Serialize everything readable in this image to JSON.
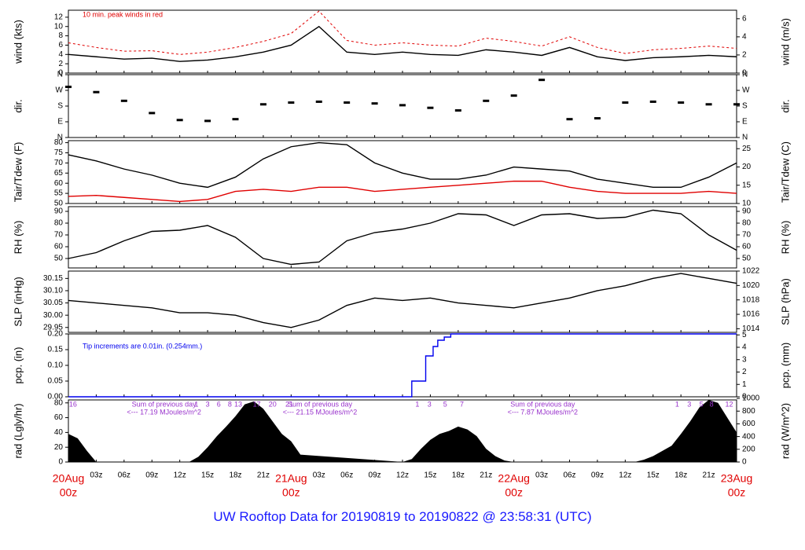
{
  "footer_title": "UW Rooftop Data for 20190819  to  20190822 @ 23:58:31  (UTC)",
  "colors": {
    "axis": "#000000",
    "red": "#e00000",
    "blue": "#0000ee",
    "purple": "#9933cc",
    "title": "#1a1aff"
  },
  "x_axis": {
    "hour_ticks": [
      "03z",
      "06z",
      "09z",
      "12z",
      "15z",
      "18z",
      "21z",
      "03z",
      "06z",
      "09z",
      "12z",
      "15z",
      "18z",
      "21z",
      "03z",
      "06z",
      "09z",
      "12z",
      "15z",
      "18z",
      "21z"
    ],
    "day_labels": [
      {
        "date": "20Aug",
        "time": "00z"
      },
      {
        "date": "21Aug",
        "time": "00z"
      },
      {
        "date": "22Aug",
        "time": "00z"
      },
      {
        "date": "23Aug",
        "time": "00z"
      }
    ]
  },
  "chart_data": [
    {
      "type": "line",
      "panel": "wind",
      "ylabel_left": "wind (kts)",
      "ylabel_right": "wind (m/s)",
      "left_ticks": [
        "0",
        "2",
        "4",
        "6",
        "8",
        "10",
        "12"
      ],
      "ylim_left": [
        0,
        13.5
      ],
      "right_ticks": [
        "0",
        "2",
        "4",
        "6"
      ],
      "ylim_right": [
        0,
        6.94
      ],
      "annotation": "10 min. peak winds in red",
      "series": [
        {
          "role": "mean",
          "color": "#000000",
          "x": [
            0,
            3,
            6,
            9,
            12,
            15,
            18,
            21,
            24,
            27,
            30,
            33,
            36,
            39,
            42,
            45,
            48,
            51,
            54,
            57,
            60,
            63,
            66,
            69,
            72
          ],
          "y": [
            4,
            3.5,
            3,
            3.2,
            2.5,
            2.8,
            3.5,
            4.5,
            6,
            10,
            4.5,
            4,
            4.5,
            4,
            3.8,
            5,
            4.5,
            3.8,
            5.5,
            3.5,
            2.7,
            3.3,
            3.5,
            3.8,
            3.5
          ]
        },
        {
          "role": "peak",
          "color": "#e00000",
          "x": [
            0,
            3,
            6,
            9,
            12,
            15,
            18,
            21,
            24,
            27,
            30,
            33,
            36,
            39,
            42,
            45,
            48,
            51,
            54,
            57,
            60,
            63,
            66,
            69,
            72
          ],
          "y": [
            6.5,
            5.5,
            4.7,
            4.8,
            4,
            4.5,
            5.5,
            6.8,
            8.5,
            13.3,
            7,
            6,
            6.5,
            6,
            5.8,
            7.5,
            6.8,
            5.8,
            7.8,
            5.5,
            4.2,
            5,
            5.3,
            5.8,
            5.3
          ]
        }
      ]
    },
    {
      "type": "scatter",
      "panel": "dir",
      "ylabel_left": "dir.",
      "ylabel_right": "dir.",
      "left_ticks": [
        "N",
        "E",
        "S",
        "W",
        "N"
      ],
      "right_ticks": [
        "N",
        "E",
        "S",
        "W",
        "N"
      ],
      "ylim": [
        0,
        360
      ],
      "series": [
        {
          "color": "#000000",
          "x": [
            0,
            3,
            6,
            9,
            12,
            15,
            18,
            21,
            24,
            27,
            30,
            33,
            36,
            39,
            42,
            45,
            48,
            51,
            54,
            57,
            60,
            63,
            66,
            69,
            72
          ],
          "y": [
            290,
            260,
            210,
            140,
            100,
            95,
            105,
            190,
            200,
            205,
            200,
            195,
            185,
            170,
            155,
            210,
            240,
            330,
            105,
            110,
            200,
            205,
            200,
            190,
            190
          ]
        }
      ]
    },
    {
      "type": "line",
      "panel": "temp",
      "ylabel_left": "Tair/Tdew (F)",
      "ylabel_right": "Tair/Tdew (C)",
      "left_ticks": [
        "50",
        "55",
        "60",
        "65",
        "70",
        "75",
        "80"
      ],
      "ylim_left": [
        50,
        81
      ],
      "right_ticks": [
        "10",
        "15",
        "20",
        "25"
      ],
      "ylim_right": [
        10,
        27.2
      ],
      "series": [
        {
          "name": "Tair",
          "color": "#000000",
          "x": [
            0,
            3,
            6,
            9,
            12,
            15,
            18,
            21,
            24,
            27,
            30,
            33,
            36,
            39,
            42,
            45,
            48,
            51,
            54,
            57,
            60,
            63,
            66,
            69,
            72
          ],
          "y": [
            74,
            71,
            67,
            64,
            60,
            58,
            63,
            72,
            78,
            80,
            79,
            70,
            65,
            62,
            62,
            64,
            68,
            67,
            66,
            62,
            60,
            58,
            58,
            63,
            70
          ]
        },
        {
          "name": "Tdew",
          "color": "#e00000",
          "x": [
            0,
            3,
            6,
            9,
            12,
            15,
            18,
            21,
            24,
            27,
            30,
            33,
            36,
            39,
            42,
            45,
            48,
            51,
            54,
            57,
            60,
            63,
            66,
            69,
            72
          ],
          "y": [
            53.5,
            54,
            53,
            52,
            51,
            52,
            56,
            57,
            56,
            58,
            58,
            56,
            57,
            58,
            59,
            60,
            61,
            61,
            58,
            56,
            55,
            55,
            55,
            56,
            55
          ]
        }
      ]
    },
    {
      "type": "line",
      "panel": "rh",
      "ylabel_left": "RH (%)",
      "ylabel_right": "RH (%)",
      "left_ticks": [
        "50",
        "60",
        "70",
        "80",
        "90"
      ],
      "right_ticks": [
        "50",
        "60",
        "70",
        "80",
        "90"
      ],
      "ylim": [
        42,
        94
      ],
      "series": [
        {
          "color": "#000000",
          "x": [
            0,
            3,
            6,
            9,
            12,
            15,
            18,
            21,
            24,
            27,
            30,
            33,
            36,
            39,
            42,
            45,
            48,
            51,
            54,
            57,
            60,
            63,
            66,
            69,
            72
          ],
          "y": [
            50,
            55,
            65,
            73,
            74,
            78,
            68,
            50,
            45,
            47,
            65,
            72,
            75,
            80,
            88,
            87,
            78,
            87,
            88,
            84,
            85,
            91,
            88,
            70,
            57
          ]
        }
      ]
    },
    {
      "type": "line",
      "panel": "slp",
      "ylabel_left": "SLP (inHg)",
      "ylabel_right": "SLP (hPa)",
      "left_ticks": [
        "29.95",
        "30.00",
        "30.05",
        "30.10",
        "30.15"
      ],
      "ylim_left": [
        29.93,
        30.18
      ],
      "right_ticks": [
        "1014",
        "1016",
        "1018",
        "1020",
        "1022"
      ],
      "ylim_right": [
        1013.5,
        1022.0
      ],
      "series": [
        {
          "color": "#000000",
          "x": [
            0,
            3,
            6,
            9,
            12,
            15,
            18,
            21,
            24,
            27,
            30,
            33,
            36,
            39,
            42,
            45,
            48,
            51,
            54,
            57,
            60,
            63,
            66,
            69,
            72
          ],
          "y": [
            30.06,
            30.05,
            30.04,
            30.03,
            30.01,
            30.01,
            30.0,
            29.97,
            29.95,
            29.98,
            30.04,
            30.07,
            30.06,
            30.07,
            30.05,
            30.04,
            30.03,
            30.05,
            30.07,
            30.1,
            30.12,
            30.15,
            30.17,
            30.15,
            30.13
          ]
        }
      ]
    },
    {
      "type": "line",
      "panel": "pcp",
      "ylabel_left": "pcp. (in)",
      "ylabel_right": "pcp. (mm)",
      "left_ticks": [
        "0.00",
        "0.05",
        "0.10",
        "0.15",
        "0.20"
      ],
      "ylim_left": [
        0,
        0.2
      ],
      "right_ticks": [
        "0",
        "1",
        "2",
        "3",
        "4",
        "5"
      ],
      "ylim_right": [
        0,
        5.08
      ],
      "annotation": "Tip increments are 0.01in. (0.254mm.)",
      "series": [
        {
          "color": "#0000ee",
          "x": [
            0,
            37,
            37,
            38.5,
            38.5,
            39.3,
            39.3,
            39.8,
            39.8,
            40.5,
            40.5,
            41.2,
            41.2,
            72
          ],
          "y": [
            0,
            0,
            0.05,
            0.05,
            0.13,
            0.13,
            0.16,
            0.16,
            0.18,
            0.18,
            0.19,
            0.19,
            0.2,
            0.2
          ]
        }
      ]
    },
    {
      "type": "area",
      "panel": "rad",
      "ylabel_left": "rad (Lgly/hr)",
      "ylabel_right": "rad (W/m^2)",
      "left_ticks": [
        "0",
        "20",
        "40",
        "60",
        "80"
      ],
      "ylim_left": [
        0,
        84
      ],
      "right_ticks": [
        "0",
        "200",
        "400",
        "600",
        "800",
        "1000"
      ],
      "ylim_right": [
        0,
        976
      ],
      "series": [
        {
          "color": "#000000",
          "x": [
            0,
            1,
            2,
            3,
            13,
            14,
            15,
            16,
            17,
            18,
            19,
            20,
            21,
            22,
            23,
            24,
            25,
            36,
            37,
            38,
            39,
            40,
            41,
            42,
            43,
            44,
            45,
            46,
            47,
            48,
            61,
            62,
            63,
            64,
            65,
            66,
            67,
            68,
            69,
            70,
            71,
            72
          ],
          "y": [
            38,
            32,
            15,
            0,
            0,
            7,
            20,
            35,
            48,
            62,
            78,
            82,
            72,
            55,
            38,
            28,
            10,
            0,
            4,
            18,
            30,
            38,
            42,
            48,
            44,
            35,
            18,
            8,
            2,
            0,
            0,
            3,
            8,
            15,
            22,
            38,
            55,
            74,
            84,
            80,
            60,
            40
          ]
        }
      ],
      "annotations": [
        {
          "text": "Sum of previous day",
          "day": 0.5,
          "line": 1
        },
        {
          "text": "<--- 17.19 MJoules/m^2",
          "day": 0.5,
          "line": 2
        },
        {
          "text": "Sum of previous day",
          "day": 1.2,
          "line": 1
        },
        {
          "text": "<--- 21.15 MJoules/m^2",
          "day": 1.2,
          "line": 2
        },
        {
          "text": "Sum of previous day",
          "day": 2.2,
          "line": 1
        },
        {
          "text": "<--- 7.87 MJoules/m^2",
          "day": 2.2,
          "line": 2
        }
      ],
      "tips": [
        {
          "text": "16",
          "x": 0.5
        },
        {
          "text": "1",
          "x": 13.8
        },
        {
          "text": "3",
          "x": 15
        },
        {
          "text": "6",
          "x": 16.2
        },
        {
          "text": "8",
          "x": 17.4
        },
        {
          "text": "13",
          "x": 18.3
        },
        {
          "text": "17",
          "x": 20.3
        },
        {
          "text": "20",
          "x": 22
        },
        {
          "text": "21",
          "x": 23.8
        },
        {
          "text": "1",
          "x": 37.6
        },
        {
          "text": "3",
          "x": 38.9
        },
        {
          "text": "5",
          "x": 40.6
        },
        {
          "text": "7",
          "x": 42.4
        },
        {
          "text": "1",
          "x": 65.6
        },
        {
          "text": "3",
          "x": 66.9
        },
        {
          "text": "5",
          "x": 68.2
        },
        {
          "text": "8",
          "x": 69.3
        },
        {
          "text": "12",
          "x": 71.2
        }
      ]
    }
  ]
}
